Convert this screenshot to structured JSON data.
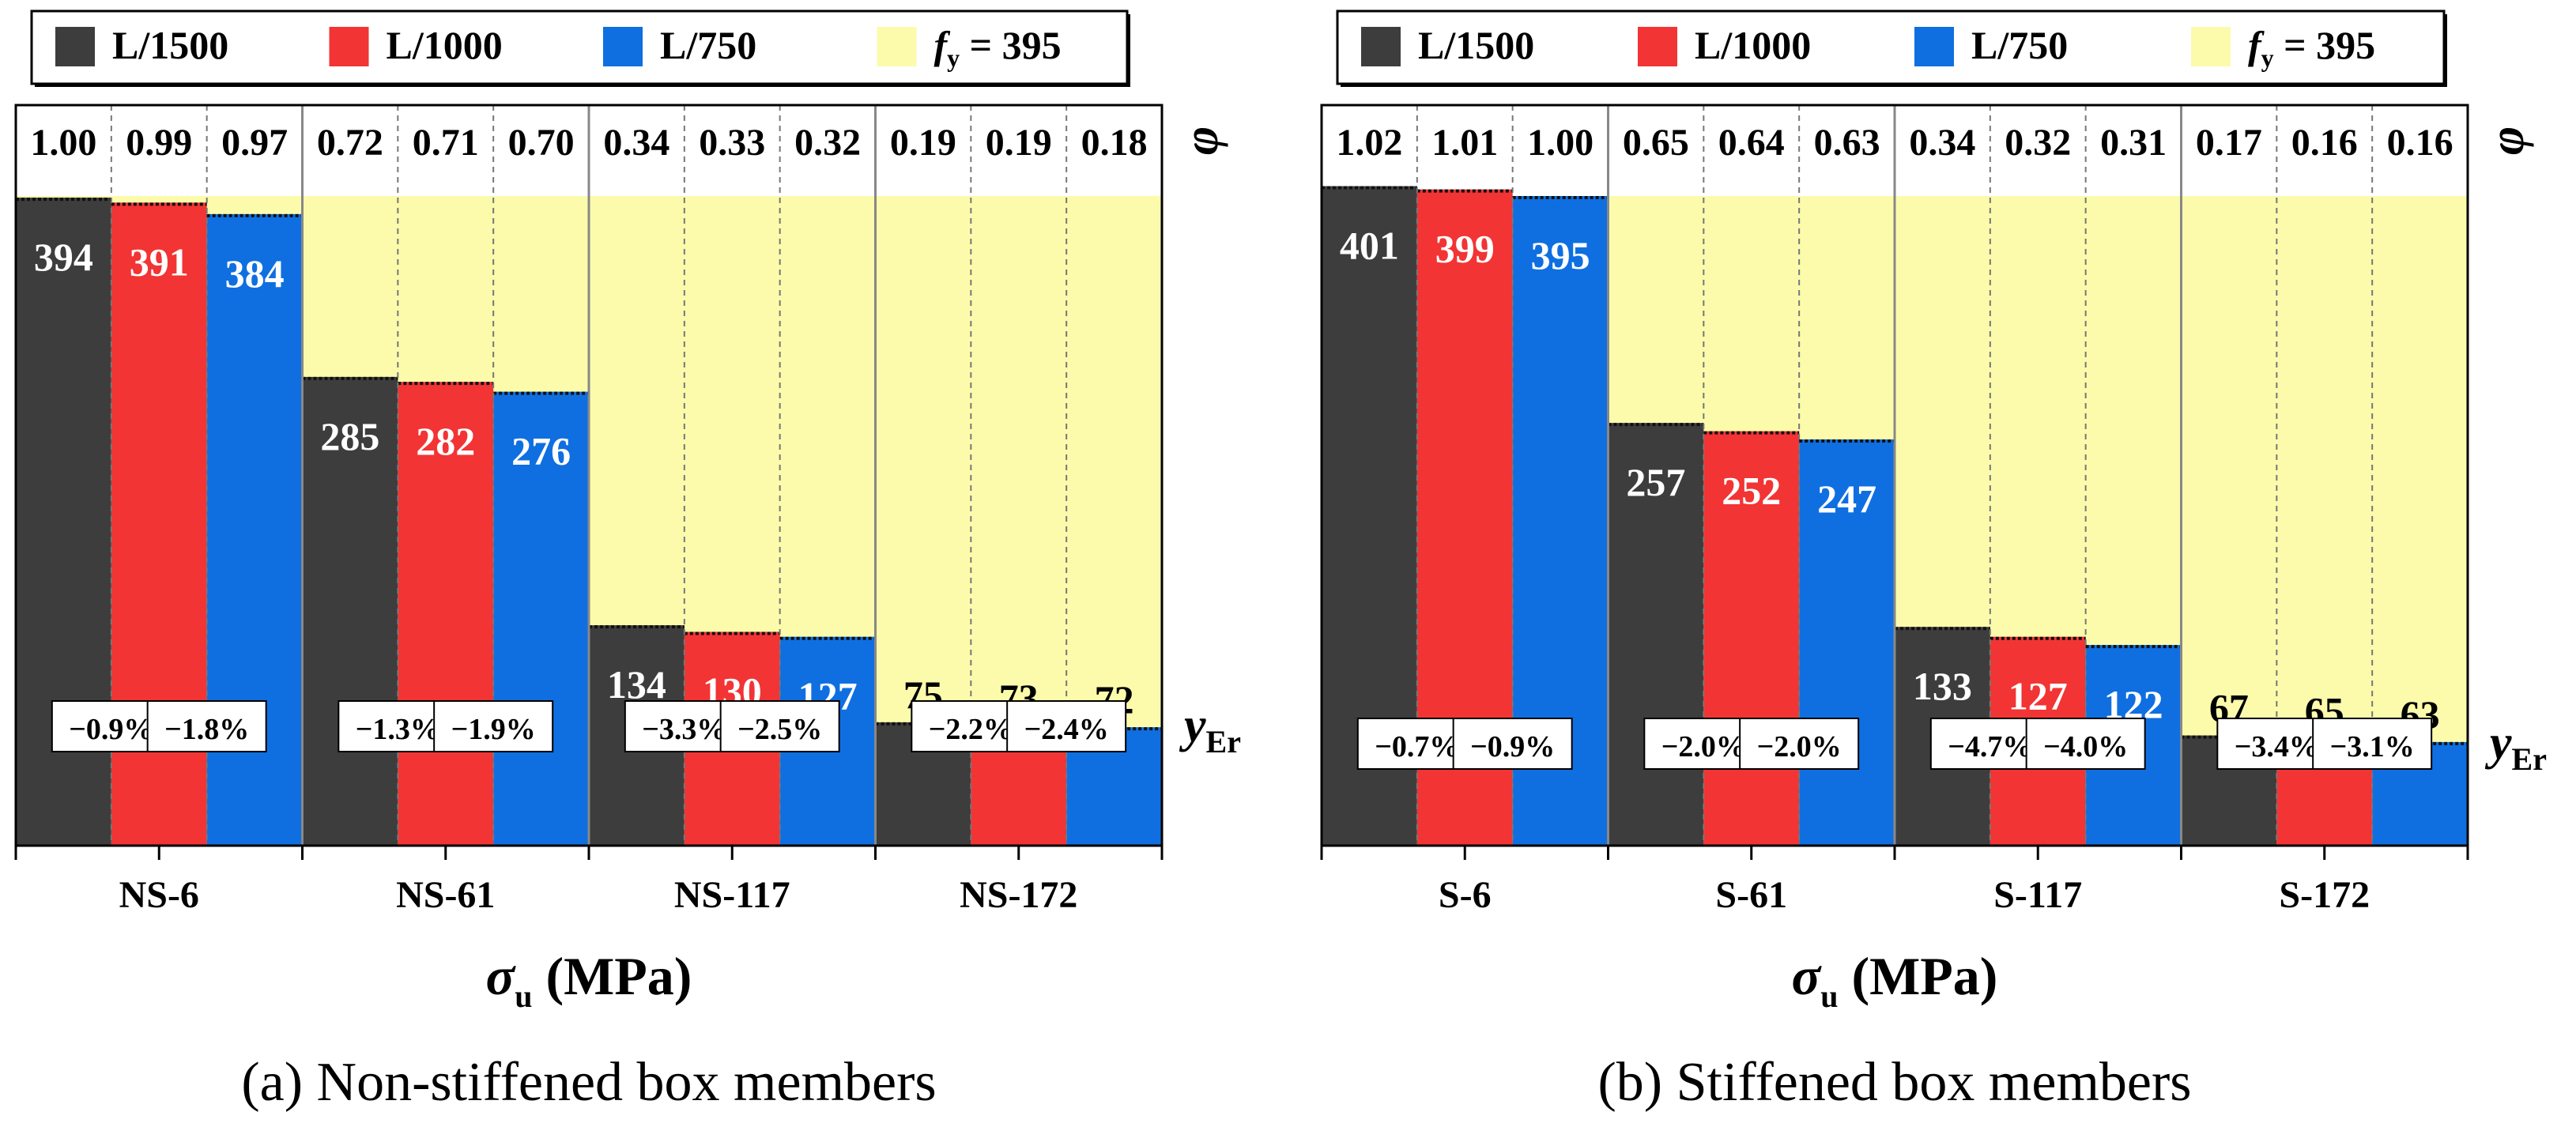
{
  "legend": {
    "items": [
      {
        "label": "L/1500",
        "color": "#3d3d3d"
      },
      {
        "label": "L/1000",
        "color": "#f23434"
      },
      {
        "label": "L/750",
        "color": "#0f6fe0"
      }
    ],
    "fy": {
      "symbol": "f",
      "subscript": "y",
      "value_text": " = 395",
      "color": "#fbfbab"
    }
  },
  "chart_data": [
    {
      "type": "bar",
      "caption": "(a) Non-stiffened box members",
      "xlabel_symbol": "σ",
      "xlabel_subscript": "u",
      "xlabel_unit": " (MPa)",
      "phi_symbol": "φ",
      "yer_symbol": "y",
      "yer_subscript": "Er",
      "fy_line": 395,
      "ylim": [
        0,
        418
      ],
      "categories": [
        "NS-6",
        "NS-61",
        "NS-117",
        "NS-172"
      ],
      "series": [
        {
          "name": "L/1500",
          "values": [
            394,
            285,
            134,
            75
          ]
        },
        {
          "name": "L/1000",
          "values": [
            391,
            282,
            130,
            73
          ]
        },
        {
          "name": "L/750",
          "values": [
            384,
            276,
            127,
            72
          ]
        }
      ],
      "phi": [
        [
          "1.00",
          "0.99",
          "0.97"
        ],
        [
          "0.72",
          "0.71",
          "0.70"
        ],
        [
          "0.34",
          "0.33",
          "0.32"
        ],
        [
          "0.19",
          "0.19",
          "0.18"
        ]
      ],
      "errors": [
        [
          "−0.9%",
          "−1.8%"
        ],
        [
          "−1.3%",
          "−1.9%"
        ],
        [
          "−3.3%",
          "−2.5%"
        ],
        [
          "−2.2%",
          "−2.4%"
        ]
      ]
    },
    {
      "type": "bar",
      "caption": "(b) Stiffened box members",
      "xlabel_symbol": "σ",
      "xlabel_subscript": "u",
      "xlabel_unit": " (MPa)",
      "phi_symbol": "φ",
      "yer_symbol": "y",
      "yer_subscript": "Er",
      "fy_line": 395,
      "ylim": [
        0,
        418
      ],
      "categories": [
        "S-6",
        "S-61",
        "S-117",
        "S-172"
      ],
      "series": [
        {
          "name": "L/1500",
          "values": [
            401,
            257,
            133,
            67
          ]
        },
        {
          "name": "L/1000",
          "values": [
            399,
            252,
            127,
            65
          ]
        },
        {
          "name": "L/750",
          "values": [
            395,
            247,
            122,
            63
          ]
        }
      ],
      "phi": [
        [
          "1.02",
          "1.01",
          "1.00"
        ],
        [
          "0.65",
          "0.64",
          "0.63"
        ],
        [
          "0.34",
          "0.32",
          "0.31"
        ],
        [
          "0.17",
          "0.16",
          "0.16"
        ]
      ],
      "errors": [
        [
          "−0.7%",
          "−0.9%"
        ],
        [
          "−2.0%",
          "−2.0%"
        ],
        [
          "−4.7%",
          "−4.0%"
        ],
        [
          "−3.4%",
          "−3.1%"
        ]
      ]
    }
  ]
}
